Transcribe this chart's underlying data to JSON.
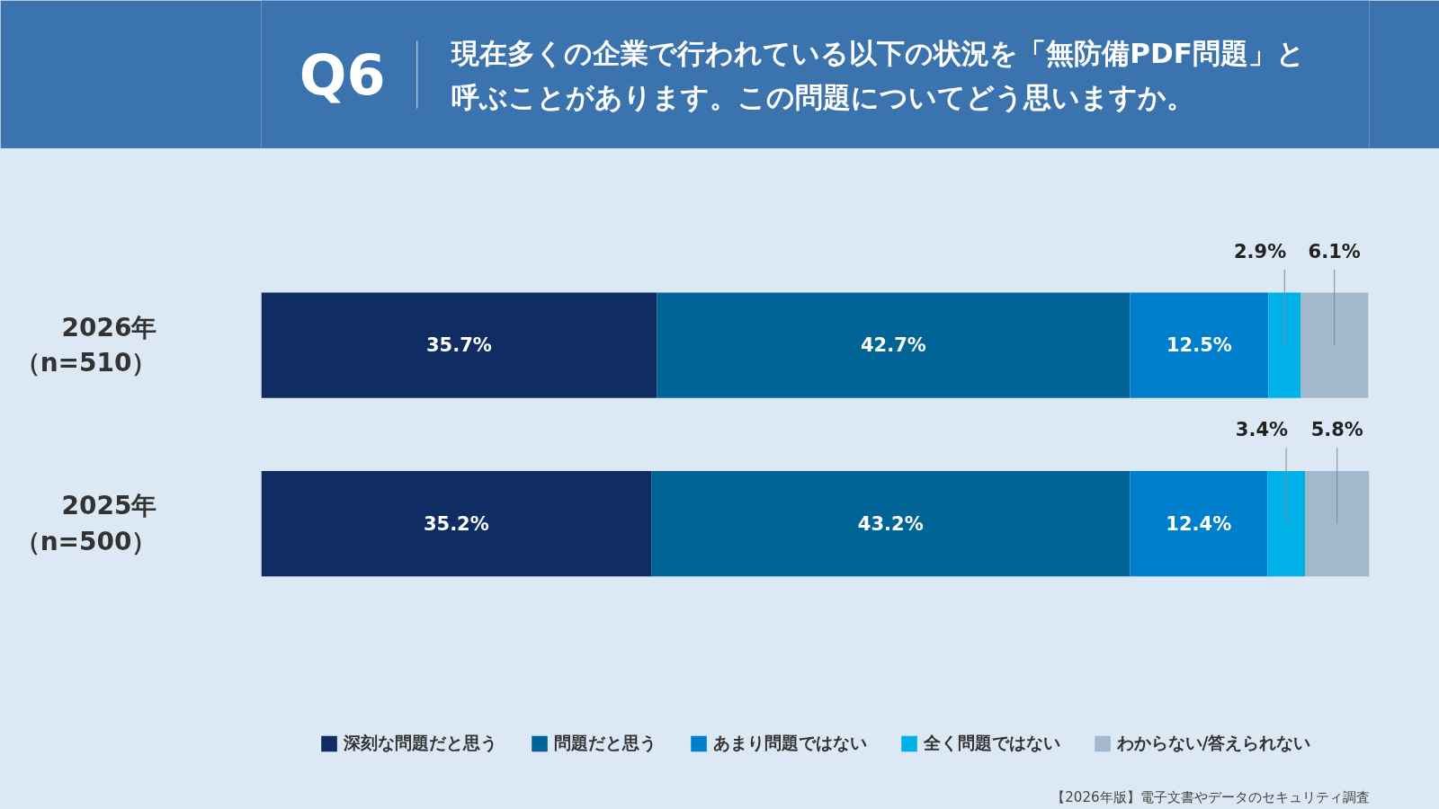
{
  "chart_data": {
    "type": "bar",
    "orientation": "horizontal",
    "stacked": true,
    "title": "Q6",
    "subtitle": "現在多くの企業で行われている以下の状況を「無防備PDF問題」と呼ぶことがあります。この問題についてどう思いますか。",
    "categories": [
      "2026年（n=510）",
      "2025年（n=500）"
    ],
    "series": [
      {
        "name": "深刻な問題だと思う",
        "color": "#0f2d62",
        "values": [
          35.7,
          35.2
        ],
        "value_labels": [
          "35.7%",
          "35.2%"
        ]
      },
      {
        "name": "問題だと思う",
        "color": "#006596",
        "values": [
          42.7,
          43.2
        ],
        "value_labels": [
          "42.7%",
          "43.2%"
        ]
      },
      {
        "name": "あまり問題ではない",
        "color": "#007fcc",
        "values": [
          12.5,
          12.4
        ],
        "value_labels": [
          "12.5%",
          "12.4%"
        ]
      },
      {
        "name": "全く問題ではない",
        "color": "#00b1e8",
        "values": [
          2.9,
          3.4
        ],
        "value_labels": [
          "2.9%",
          "3.4%"
        ]
      },
      {
        "name": "わからない/答えられない",
        "color": "#a2b8cb",
        "values": [
          6.1,
          5.8
        ],
        "value_labels": [
          "6.1%",
          "5.8%"
        ]
      }
    ],
    "tick_labels": "y",
    "legend": "bottom",
    "annotations": [
      "【2026年版】電子文書やデータのセキュリティ調査"
    ]
  }
}
